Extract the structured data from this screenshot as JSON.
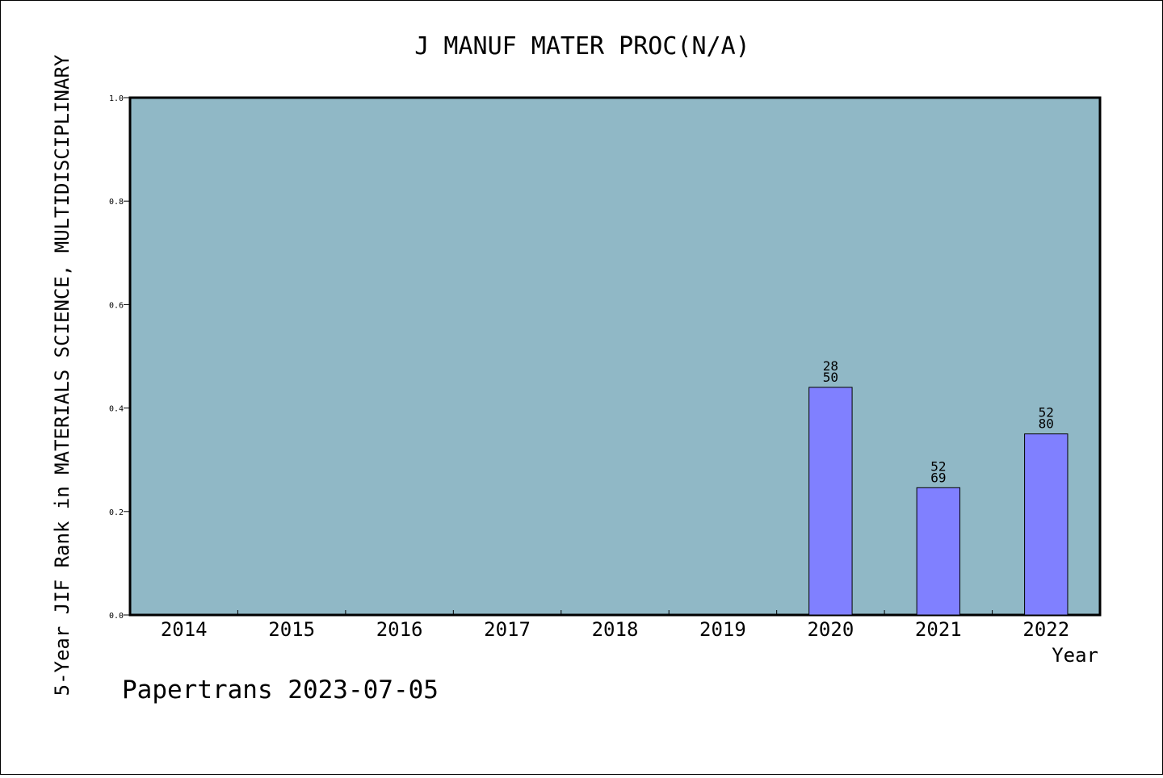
{
  "chart_data": {
    "type": "bar",
    "title": "J MANUF MATER PROC(N/A)",
    "xlabel": "Year",
    "ylabel": "5-Year JIF Rank in MATERIALS SCIENCE, MULTIDISCIPLINARY",
    "categories": [
      "2014",
      "2015",
      "2016",
      "2017",
      "2018",
      "2019",
      "2020",
      "2021",
      "2022"
    ],
    "values": [
      null,
      null,
      null,
      null,
      null,
      null,
      0.44,
      0.246,
      0.35
    ],
    "bar_labels": [
      null,
      null,
      null,
      null,
      null,
      null,
      {
        "rank": "28",
        "total": "50"
      },
      {
        "rank": "52",
        "total": "69"
      },
      {
        "rank": "52",
        "total": "80"
      }
    ],
    "ylim": [
      0,
      1.0
    ],
    "yticks": [
      "0.0",
      "0.2",
      "0.4",
      "0.6",
      "0.8",
      "1.0"
    ],
    "grid": false,
    "colors": {
      "plot_background": "#90b8c6",
      "bar_fill": "#8080ff",
      "bar_edge": "#000000"
    }
  },
  "footer": "Papertrans 2023-07-05"
}
